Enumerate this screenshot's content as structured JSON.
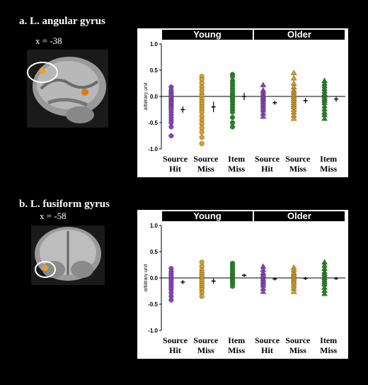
{
  "panels": [
    {
      "title": "a. L. angular gyrus",
      "coord": "x = -38",
      "brain_view": "sagittal",
      "chart_data": {
        "type": "scatter",
        "groups": [
          "Young",
          "Older"
        ],
        "categories": [
          {
            "line1": "Source",
            "line2": "Hit",
            "color": "#8b3fc7"
          },
          {
            "line1": "Source",
            "line2": "Miss",
            "color": "#d9a021"
          },
          {
            "line1": "Item",
            "line2": "Miss",
            "color": "#1f8a1f"
          }
        ],
        "ylabel": "arbitrary unit",
        "ylim": [
          -1.0,
          1.0
        ],
        "yticks": [
          "1.0",
          "0.5",
          "0.0",
          "-0.5",
          "-1.0"
        ],
        "series": [
          {
            "group": "Young",
            "category": "Source Hit",
            "marker": "circle",
            "values": [
              0.18,
              0.12,
              0.08,
              0.05,
              0.02,
              -0.02,
              -0.05,
              -0.08,
              -0.1,
              -0.12,
              -0.15,
              -0.18,
              -0.2,
              -0.22,
              -0.25,
              -0.3,
              -0.35,
              -0.4,
              -0.45,
              -0.5,
              -0.58,
              -0.75
            ],
            "mean": -0.25,
            "err": 0.06
          },
          {
            "group": "Young",
            "category": "Source Miss",
            "marker": "circle",
            "values": [
              0.38,
              0.32,
              0.25,
              0.18,
              0.12,
              0.05,
              0.0,
              -0.05,
              -0.1,
              -0.15,
              -0.2,
              -0.25,
              -0.3,
              -0.38,
              -0.45,
              -0.52,
              -0.6,
              -0.68,
              -0.78,
              -0.9
            ],
            "mean": -0.2,
            "err": 0.1
          },
          {
            "group": "Young",
            "category": "Item Miss",
            "marker": "circle",
            "values": [
              0.42,
              0.38,
              0.3,
              0.25,
              0.2,
              0.15,
              0.1,
              0.05,
              0.02,
              -0.02,
              -0.06,
              -0.1,
              -0.15,
              -0.2,
              -0.25,
              -0.3,
              -0.4,
              -0.5,
              -0.58
            ],
            "mean": 0.0,
            "err": 0.07
          },
          {
            "group": "Older",
            "category": "Source Hit",
            "marker": "triangle",
            "values": [
              0.22,
              0.12,
              0.08,
              0.04,
              0.0,
              -0.03,
              -0.06,
              -0.1,
              -0.14,
              -0.18,
              -0.22,
              -0.26,
              -0.32,
              -0.38
            ],
            "mean": -0.12,
            "err": 0.04
          },
          {
            "group": "Older",
            "category": "Source Miss",
            "marker": "triangle",
            "values": [
              0.45,
              0.35,
              0.25,
              0.18,
              0.12,
              0.08,
              0.04,
              0.0,
              -0.04,
              -0.08,
              -0.12,
              -0.16,
              -0.2,
              -0.25,
              -0.3,
              -0.36,
              -0.42
            ],
            "mean": -0.08,
            "err": 0.05
          },
          {
            "group": "Older",
            "category": "Item Miss",
            "marker": "triangle",
            "values": [
              0.3,
              0.25,
              0.2,
              0.15,
              0.1,
              0.05,
              0.0,
              -0.04,
              -0.08,
              -0.12,
              -0.18,
              -0.24,
              -0.3,
              -0.35,
              -0.42
            ],
            "mean": -0.05,
            "err": 0.05
          }
        ]
      }
    },
    {
      "title": "b. L. fusiform gyrus",
      "coord": "x = -58",
      "brain_view": "coronal",
      "chart_data": {
        "type": "scatter",
        "groups": [
          "Young",
          "Older"
        ],
        "categories": [
          {
            "line1": "Source",
            "line2": "Hit",
            "color": "#8b3fc7"
          },
          {
            "line1": "Source",
            "line2": "Miss",
            "color": "#d9a021"
          },
          {
            "line1": "Item",
            "line2": "Miss",
            "color": "#1f8a1f"
          }
        ],
        "ylabel": "arbitrary unit",
        "ylim": [
          -1.0,
          1.0
        ],
        "yticks": [
          "1.0",
          "0.5",
          "0.0",
          "-0.5",
          "-1.0"
        ],
        "series": [
          {
            "group": "Young",
            "category": "Source Hit",
            "marker": "circle",
            "values": [
              0.18,
              0.12,
              0.08,
              0.04,
              0.0,
              -0.03,
              -0.06,
              -0.1,
              -0.14,
              -0.18,
              -0.22,
              -0.28,
              -0.35,
              -0.42
            ],
            "mean": -0.08,
            "err": 0.04
          },
          {
            "group": "Young",
            "category": "Source Miss",
            "marker": "circle",
            "values": [
              0.3,
              0.22,
              0.15,
              0.1,
              0.06,
              0.02,
              -0.02,
              -0.06,
              -0.1,
              -0.14,
              -0.18,
              -0.22,
              -0.28,
              -0.35
            ],
            "mean": -0.06,
            "err": 0.05
          },
          {
            "group": "Young",
            "category": "Item Miss",
            "marker": "circle",
            "values": [
              0.28,
              0.24,
              0.2,
              0.16,
              0.12,
              0.08,
              0.05,
              0.02,
              -0.02,
              -0.05,
              -0.08,
              -0.12,
              -0.16
            ],
            "mean": 0.05,
            "err": 0.03
          },
          {
            "group": "Older",
            "category": "Source Hit",
            "marker": "triangle",
            "values": [
              0.22,
              0.16,
              0.1,
              0.06,
              0.02,
              -0.02,
              -0.06,
              -0.1,
              -0.14,
              -0.2,
              -0.26
            ],
            "mean": -0.02,
            "err": 0.03
          },
          {
            "group": "Older",
            "category": "Source Miss",
            "marker": "triangle",
            "values": [
              0.2,
              0.15,
              0.1,
              0.06,
              0.02,
              -0.02,
              -0.06,
              -0.1,
              -0.15,
              -0.2,
              -0.26
            ],
            "mean": -0.01,
            "err": 0.03
          },
          {
            "group": "Older",
            "category": "Item Miss",
            "marker": "triangle",
            "values": [
              0.3,
              0.24,
              0.18,
              0.12,
              0.08,
              0.04,
              0.0,
              -0.04,
              -0.08,
              -0.12,
              -0.18,
              -0.24,
              -0.3
            ],
            "mean": -0.01,
            "err": 0.03
          }
        ]
      }
    }
  ]
}
